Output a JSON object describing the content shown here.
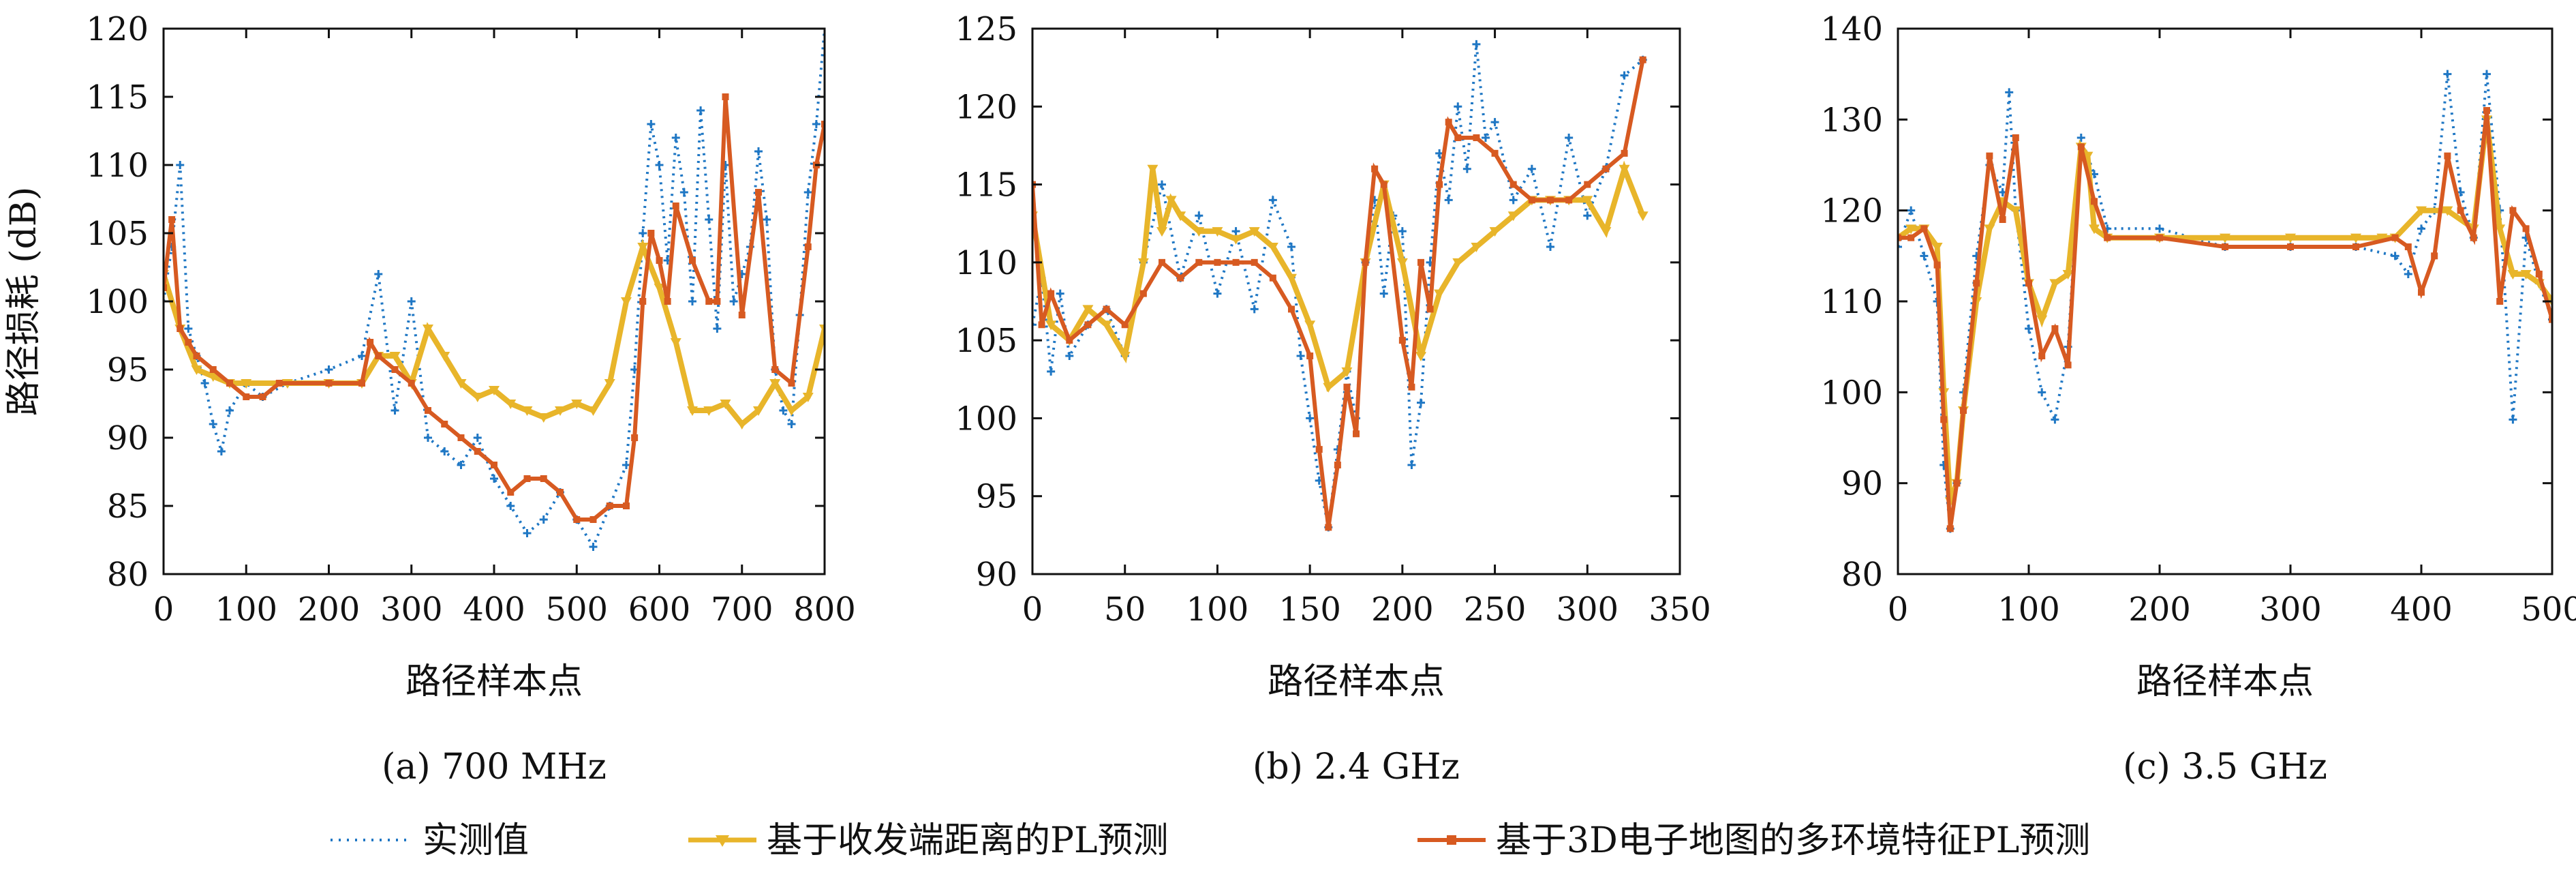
{
  "chart_data": [
    {
      "type": "line",
      "caption": "(a) 700 MHz",
      "xlabel": "路径样本点",
      "ylabel": "路径损耗 (dB)",
      "xlim": [
        0,
        800
      ],
      "ylim": [
        80,
        120
      ],
      "xticks": [
        0,
        100,
        200,
        300,
        400,
        500,
        600,
        700,
        800
      ],
      "yticks": [
        80,
        85,
        90,
        95,
        100,
        105,
        110,
        115,
        120
      ],
      "series": [
        {
          "name": "实测值",
          "color": "#1f77c4",
          "style": "dotted-plus",
          "x": [
            0,
            10,
            20,
            30,
            40,
            50,
            60,
            70,
            80,
            100,
            120,
            150,
            200,
            240,
            260,
            280,
            300,
            320,
            340,
            360,
            380,
            400,
            420,
            440,
            460,
            480,
            500,
            520,
            540,
            560,
            570,
            580,
            590,
            600,
            610,
            620,
            630,
            640,
            650,
            660,
            670,
            680,
            690,
            700,
            710,
            720,
            730,
            740,
            750,
            760,
            770,
            780,
            790,
            800
          ],
          "y": [
            100,
            104,
            110,
            98,
            96,
            94,
            91,
            89,
            92,
            94,
            93,
            94,
            95,
            96,
            102,
            92,
            100,
            90,
            89,
            88,
            90,
            87,
            85,
            83,
            84,
            86,
            84,
            82,
            85,
            88,
            95,
            105,
            113,
            110,
            103,
            112,
            108,
            100,
            114,
            106,
            98,
            110,
            100,
            102,
            104,
            111,
            106,
            95,
            92,
            91,
            99,
            108,
            113,
            120
          ]
        },
        {
          "name": "基于收发端距离的PL预测",
          "color": "#e8b52a",
          "style": "solid-triangle",
          "x": [
            0,
            20,
            40,
            60,
            80,
            100,
            150,
            200,
            240,
            260,
            280,
            300,
            320,
            340,
            360,
            380,
            400,
            420,
            440,
            460,
            480,
            500,
            520,
            540,
            560,
            580,
            600,
            620,
            640,
            660,
            680,
            700,
            720,
            740,
            760,
            780,
            800
          ],
          "y": [
            102,
            98,
            95,
            94.5,
            94,
            94,
            94,
            94,
            94,
            96,
            96,
            94,
            98,
            96,
            94,
            93,
            93.5,
            92.5,
            92,
            91.5,
            92,
            92.5,
            92,
            94,
            100,
            104,
            101,
            97,
            92,
            92,
            92.5,
            91,
            92,
            94,
            92,
            93,
            98
          ]
        },
        {
          "name": "基于3D电子地图的多环境特征PL预测",
          "color": "#d75a21",
          "style": "solid-square",
          "x": [
            0,
            10,
            20,
            30,
            40,
            60,
            80,
            100,
            120,
            140,
            200,
            240,
            250,
            260,
            280,
            300,
            320,
            340,
            360,
            380,
            400,
            420,
            440,
            460,
            480,
            500,
            520,
            540,
            560,
            570,
            580,
            590,
            600,
            610,
            620,
            640,
            660,
            670,
            680,
            700,
            720,
            740,
            760,
            780,
            790,
            800
          ],
          "y": [
            101,
            106,
            98,
            97,
            96,
            95,
            94,
            93,
            93,
            94,
            94,
            94,
            97,
            96,
            95,
            94,
            92,
            91,
            90,
            89,
            88,
            86,
            87,
            87,
            86,
            84,
            84,
            85,
            85,
            90,
            100,
            105,
            103,
            100,
            107,
            103,
            100,
            100,
            115,
            99,
            108,
            95,
            94,
            104,
            110,
            113
          ]
        }
      ]
    },
    {
      "type": "line",
      "caption": "(b) 2.4 GHz",
      "xlabel": "路径样本点",
      "ylabel": "",
      "xlim": [
        0,
        350
      ],
      "ylim": [
        90,
        125
      ],
      "xticks": [
        0,
        50,
        100,
        150,
        200,
        250,
        300,
        350
      ],
      "yticks": [
        90,
        95,
        100,
        105,
        110,
        115,
        120,
        125
      ],
      "series": [
        {
          "name": "实测值",
          "color": "#1f77c4",
          "style": "dotted-plus",
          "x": [
            0,
            5,
            10,
            15,
            20,
            30,
            40,
            50,
            60,
            70,
            80,
            90,
            100,
            110,
            120,
            130,
            140,
            145,
            150,
            155,
            160,
            165,
            170,
            175,
            180,
            185,
            190,
            195,
            200,
            205,
            210,
            215,
            220,
            225,
            230,
            235,
            240,
            245,
            250,
            260,
            270,
            280,
            290,
            300,
            310,
            320,
            330
          ],
          "y": [
            106,
            109,
            103,
            108,
            104,
            106,
            107,
            104,
            110,
            115,
            109,
            113,
            108,
            112,
            107,
            114,
            111,
            104,
            100,
            96,
            93,
            98,
            103,
            100,
            110,
            114,
            108,
            113,
            112,
            97,
            101,
            110,
            117,
            114,
            120,
            116,
            124,
            118,
            119,
            114,
            116,
            111,
            118,
            113,
            116,
            122,
            123
          ]
        },
        {
          "name": "基于收发端距离的PL预测",
          "color": "#e8b52a",
          "style": "solid-triangle",
          "x": [
            0,
            10,
            20,
            30,
            40,
            50,
            60,
            65,
            70,
            75,
            80,
            90,
            100,
            110,
            120,
            130,
            140,
            150,
            160,
            170,
            180,
            190,
            200,
            210,
            220,
            230,
            240,
            250,
            260,
            270,
            280,
            290,
            300,
            310,
            320,
            330
          ],
          "y": [
            113,
            106,
            105,
            107,
            106,
            104,
            110,
            116,
            112,
            114,
            113,
            112,
            112,
            111.5,
            112,
            111,
            109,
            106,
            102,
            103,
            110,
            115,
            110,
            104,
            108,
            110,
            111,
            112,
            113,
            114,
            114,
            114,
            114,
            112,
            116,
            113
          ]
        },
        {
          "name": "基于3D电子地图的多环境特征PL预测",
          "color": "#d75a21",
          "style": "solid-square",
          "x": [
            0,
            5,
            10,
            20,
            30,
            40,
            50,
            60,
            70,
            80,
            90,
            100,
            110,
            120,
            130,
            140,
            150,
            155,
            160,
            165,
            170,
            175,
            180,
            185,
            190,
            200,
            205,
            210,
            215,
            220,
            225,
            230,
            240,
            250,
            260,
            270,
            280,
            290,
            300,
            310,
            320,
            330
          ],
          "y": [
            115,
            106,
            108,
            105,
            106,
            107,
            106,
            108,
            110,
            109,
            110,
            110,
            110,
            110,
            109,
            107,
            104,
            98,
            93,
            97,
            102,
            99,
            110,
            116,
            115,
            105,
            102,
            110,
            107,
            115,
            119,
            118,
            118,
            117,
            115,
            114,
            114,
            114,
            115,
            116,
            117,
            123
          ]
        }
      ]
    },
    {
      "type": "line",
      "caption": "(c) 3.5 GHz",
      "xlabel": "路径样本点",
      "ylabel": "",
      "xlim": [
        0,
        500
      ],
      "ylim": [
        80,
        140
      ],
      "xticks": [
        0,
        100,
        200,
        300,
        400,
        500
      ],
      "yticks": [
        80,
        90,
        100,
        110,
        120,
        130,
        140
      ],
      "series": [
        {
          "name": "实测值",
          "color": "#1f77c4",
          "style": "dotted-plus",
          "x": [
            0,
            10,
            20,
            30,
            35,
            40,
            45,
            50,
            60,
            70,
            80,
            85,
            90,
            100,
            110,
            120,
            130,
            140,
            150,
            160,
            200,
            250,
            300,
            350,
            380,
            390,
            400,
            410,
            420,
            430,
            440,
            450,
            460,
            470,
            480,
            490,
            500
          ],
          "y": [
            116,
            120,
            115,
            110,
            92,
            85,
            90,
            100,
            115,
            125,
            122,
            133,
            120,
            107,
            100,
            97,
            105,
            128,
            124,
            118,
            118,
            116,
            116,
            116,
            115,
            113,
            118,
            120,
            135,
            122,
            117,
            135,
            120,
            97,
            117,
            112,
            108
          ]
        },
        {
          "name": "基于收发端距离的PL预测",
          "color": "#e8b52a",
          "style": "solid-triangle",
          "x": [
            0,
            10,
            20,
            30,
            35,
            40,
            45,
            50,
            60,
            70,
            80,
            90,
            100,
            110,
            120,
            130,
            140,
            145,
            150,
            160,
            200,
            250,
            300,
            350,
            370,
            380,
            400,
            420,
            440,
            450,
            460,
            470,
            480,
            490,
            500
          ],
          "y": [
            117,
            118,
            118,
            116,
            100,
            88,
            90,
            98,
            110,
            118,
            121,
            120,
            112,
            108,
            112,
            113,
            127,
            126,
            118,
            117,
            117,
            117,
            117,
            117,
            117,
            117,
            120,
            120,
            118,
            130,
            118,
            113,
            113,
            112,
            110
          ]
        },
        {
          "name": "基于3D电子地图的多环境特征PL预测",
          "color": "#d75a21",
          "style": "solid-square",
          "x": [
            0,
            10,
            20,
            30,
            35,
            40,
            45,
            50,
            60,
            70,
            80,
            90,
            100,
            110,
            120,
            130,
            140,
            150,
            160,
            200,
            250,
            300,
            350,
            380,
            390,
            400,
            410,
            420,
            430,
            440,
            450,
            460,
            470,
            480,
            490,
            500
          ],
          "y": [
            117,
            117,
            118,
            114,
            97,
            85,
            90,
            98,
            112,
            126,
            119,
            128,
            112,
            104,
            107,
            103,
            127,
            121,
            117,
            117,
            116,
            116,
            116,
            117,
            116,
            111,
            115,
            126,
            120,
            117,
            131,
            110,
            120,
            118,
            113,
            108
          ]
        }
      ]
    }
  ],
  "legend": [
    {
      "label": "实测值",
      "color": "#1f77c4",
      "style": "dotted-plus"
    },
    {
      "label": "基于收发端距离的PL预测",
      "color": "#e8b52a",
      "style": "solid-triangle"
    },
    {
      "label": "基于3D电子地图的多环境特征PL预测",
      "color": "#d75a21",
      "style": "solid-square"
    }
  ]
}
